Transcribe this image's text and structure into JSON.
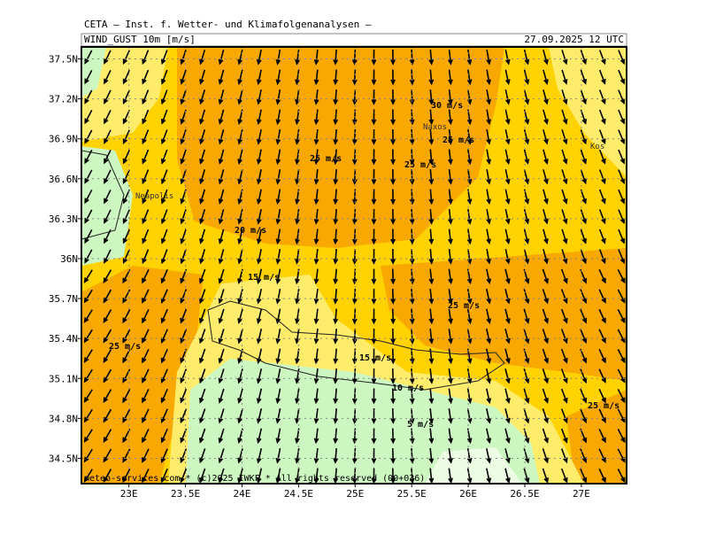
{
  "header": {
    "source": "CETA — Inst. f. Wetter- und Klimafolgenanalysen —",
    "field": "WIND_GUST 10m [m/s]",
    "valid": "27.09.2025 12 UTC"
  },
  "map": {
    "lon_range": [
      22.58,
      27.4
    ],
    "lat_range": [
      34.31,
      37.59
    ],
    "lon_ticks": [
      {
        "value": 23,
        "label": "23E"
      },
      {
        "value": 23.5,
        "label": "23.5E"
      },
      {
        "value": 24,
        "label": "24E"
      },
      {
        "value": 24.5,
        "label": "24.5E"
      },
      {
        "value": 25,
        "label": "25E"
      },
      {
        "value": 25.5,
        "label": "25.5E"
      },
      {
        "value": 26,
        "label": "26E"
      },
      {
        "value": 26.5,
        "label": "26.5E"
      },
      {
        "value": 27,
        "label": "27E"
      }
    ],
    "lat_ticks": [
      {
        "value": 37.5,
        "label": "37.5N"
      },
      {
        "value": 37.2,
        "label": "37.2N"
      },
      {
        "value": 36.9,
        "label": "36.9N"
      },
      {
        "value": 36.6,
        "label": "36.6N"
      },
      {
        "value": 36.3,
        "label": "36.3N"
      },
      {
        "value": 36,
        "label": "36N"
      },
      {
        "value": 35.7,
        "label": "35.7N"
      },
      {
        "value": 35.4,
        "label": "35.4N"
      },
      {
        "value": 35.1,
        "label": "35.1N"
      },
      {
        "value": 34.8,
        "label": "34.8N"
      },
      {
        "value": 34.5,
        "label": "34.5N"
      }
    ]
  },
  "contour_labels": [
    "30 m/s",
    "25 m/s",
    "25 m/s",
    "25 m/s",
    "20 m/s",
    "15 m/s",
    "25 m/s",
    "25 m/s",
    "15 m/s",
    "10 m/s",
    "25 m/s",
    "5 m/s"
  ],
  "places": [
    "Naxos",
    "Neapolis",
    "Kos"
  ],
  "footer": "meteo-services.com  *  (c)2025 IWKF  *  All rights reserved (00+036)"
}
